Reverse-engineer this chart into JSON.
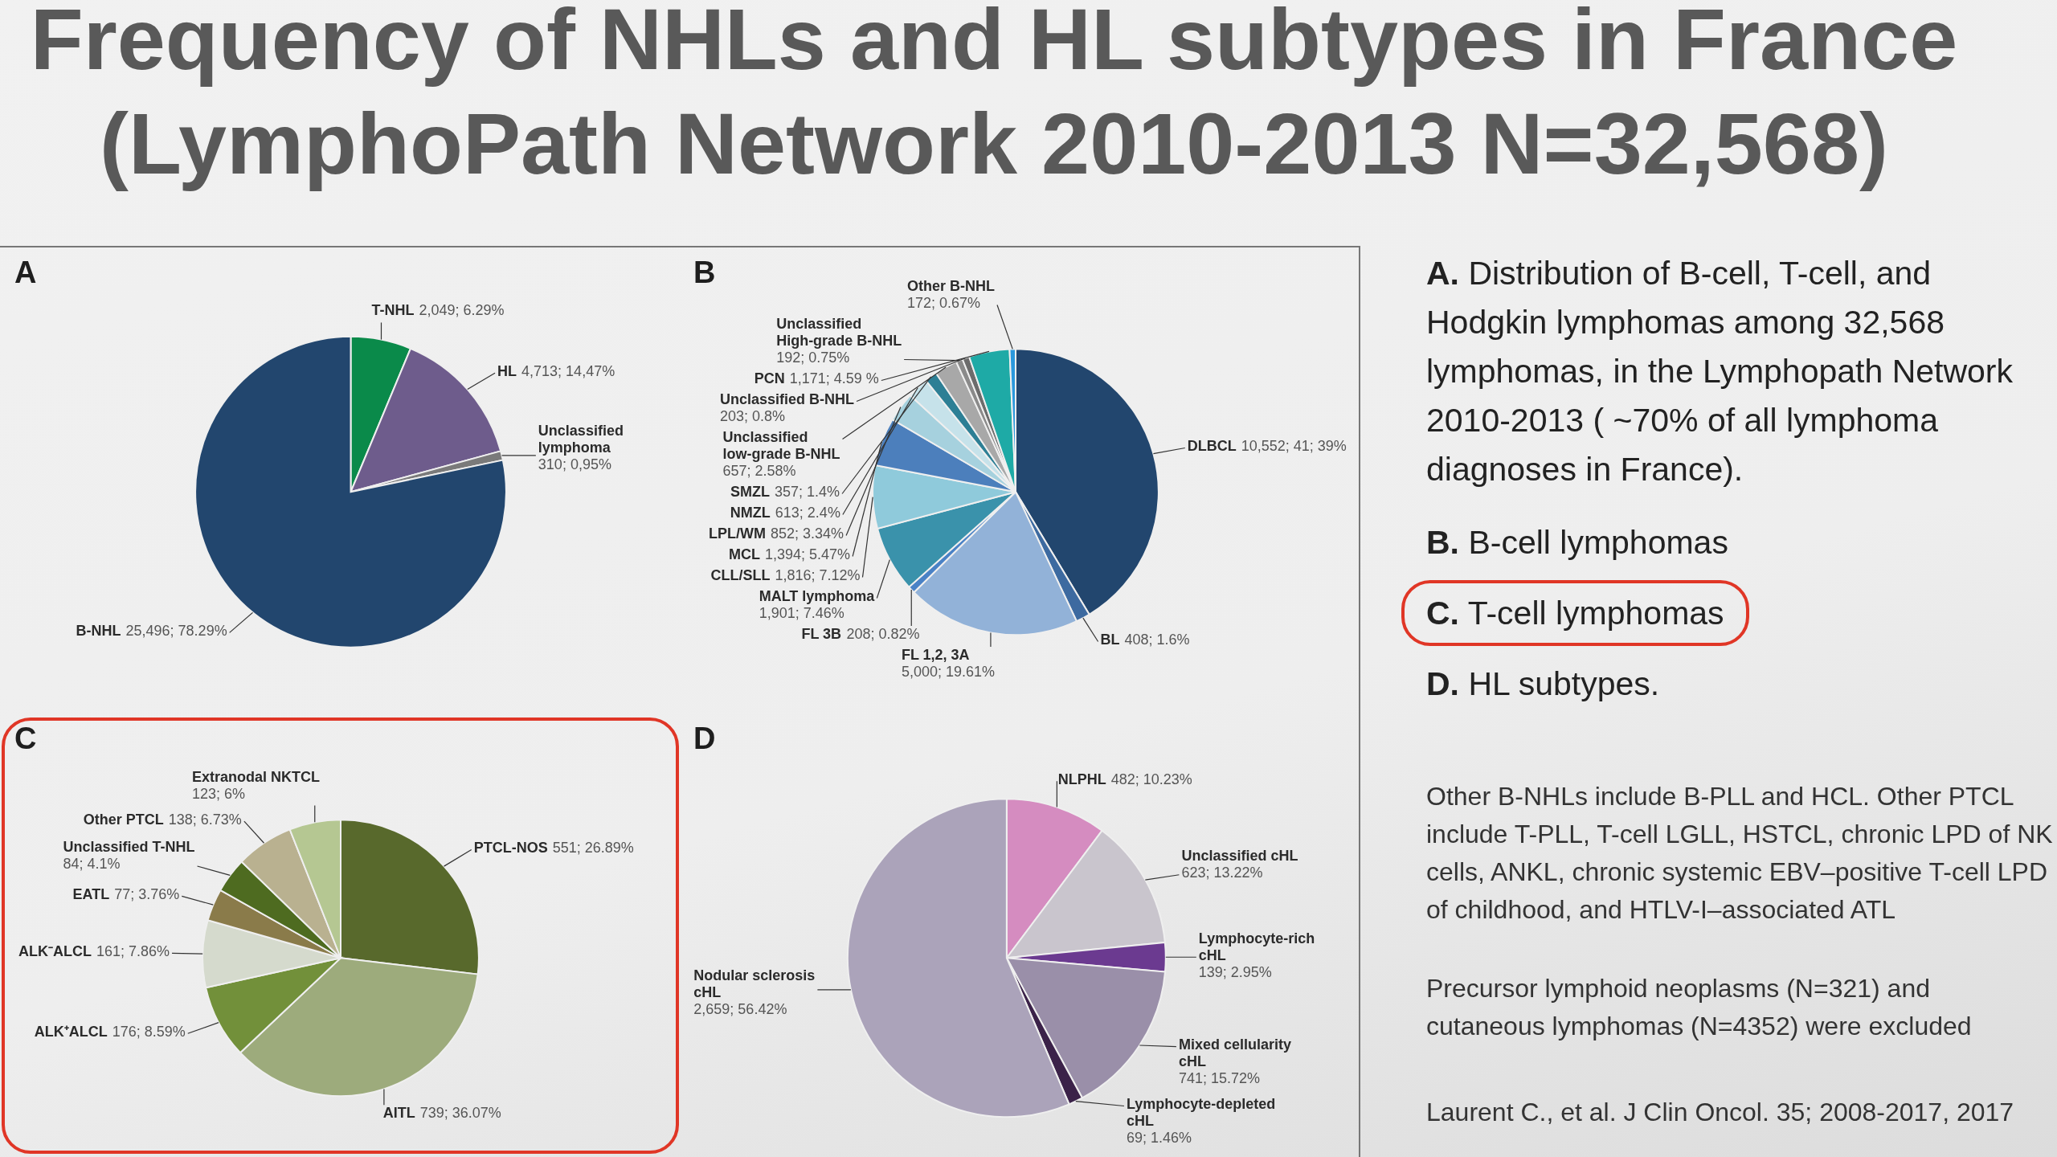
{
  "chart_data": [
    {
      "type": "other",
      "title": "Frequency of NHLs and HL subtypes in France",
      "subtitle": "(LymphoPath Network 2010-2013 N=32,568)"
    },
    {
      "type": "pie",
      "title": "A",
      "categories": [
        "T-NHL",
        "HL",
        "Unclassified lymphoma",
        "B-NHL"
      ],
      "values": [
        2049,
        4713,
        310,
        25496
      ],
      "value_labels": [
        "2,049; 6.29%",
        "4,713; 14,47%",
        "310; 0,95%",
        "25,496; 78.29%"
      ],
      "colors": [
        "#0a8a4a",
        "#6e5c8c",
        "#7a7a7a",
        "#22466e"
      ]
    },
    {
      "type": "pie",
      "title": "B",
      "categories": [
        "DLBCL",
        "BL",
        "FL 1,2, 3A",
        "FL 3B",
        "MALT lymphoma",
        "CLL/SLL",
        "MCL",
        "LPL/WM",
        "NMZL",
        "SMZL",
        "Unclassified low-grade B-NHL",
        "Unclassified High-grade B-NHL",
        "Unclassified B-NHL",
        "PCN",
        "Other B-NHL"
      ],
      "values": [
        10552,
        408,
        5000,
        208,
        1901,
        1816,
        1394,
        852,
        613,
        357,
        657,
        192,
        203,
        1171,
        172
      ],
      "value_labels": [
        "10,552; 41; 39%",
        "408; 1.6%",
        "5,000; 19.61%",
        "208; 0.82%",
        "1,901; 7.46%",
        "1,816; 7.12%",
        "1,394; 5.47%",
        "852; 3.34%",
        "613; 2.4%",
        "357; 1.4%",
        "657; 2.58%",
        "192; 0.75%",
        "203; 0.8%",
        "1,171; 4.59 %",
        "172; 0.67%"
      ],
      "colors": [
        "#22466e",
        "#3d6aa0",
        "#92b2d8",
        "#4a82c6",
        "#3a92ab",
        "#8fcadb",
        "#4c7fbc",
        "#a6d1de",
        "#c6e2ea",
        "#2d7f95",
        "#a8a8a8",
        "#8a8a8a",
        "#6c6c6c",
        "#1eaaa6",
        "#2a98dc"
      ]
    },
    {
      "type": "pie",
      "title": "C",
      "categories": [
        "PTCL-NOS",
        "AITL",
        "ALK⁺ALCL",
        "ALK⁻ALCL",
        "EATL",
        "Unclassified T-NHL",
        "Other PTCL",
        "Extranodal NKTCL"
      ],
      "values": [
        551,
        739,
        176,
        161,
        77,
        84,
        138,
        123
      ],
      "value_labels": [
        "551; 26.89%",
        "739; 36.07%",
        "176; 8.59%",
        "161; 7.86%",
        "77; 3.76%",
        "84; 4.1%",
        "138; 6.73%",
        "123; 6%"
      ],
      "colors": [
        "#58692c",
        "#9dab7c",
        "#72903a",
        "#d5dacd",
        "#8a7b4a",
        "#4e6b20",
        "#b9b190",
        "#b5c792"
      ]
    },
    {
      "type": "pie",
      "title": "D",
      "categories": [
        "NLPHL",
        "Unclassified cHL",
        "Lymphocyte-rich cHL",
        "Mixed cellularity cHL",
        "Lymphocyte-depleted cHL",
        "Nodular sclerosis cHL"
      ],
      "values": [
        482,
        623,
        139,
        741,
        69,
        2659
      ],
      "value_labels": [
        "482; 10.23%",
        "623; 13.22%",
        "139; 2.95%",
        "741; 15.72%",
        "69; 1.46%",
        "2,659; 56.42%"
      ],
      "colors": [
        "#d58cc0",
        "#c9c5cd",
        "#6b3a90",
        "#9a8fa9",
        "#3b2249",
        "#aba3ba"
      ]
    },
    {
      "type": "other",
      "annotations": [
        "A. Distribution of B-cell, T-cell, and Hodgkin lymphomas among 32,568 lymphomas, in the Lymphopath Network 2010-2013 ( ~70% of all lymphoma diagnoses in France).",
        "B. B-cell lymphomas",
        "C. T-cell lymphomas",
        "D. HL subtypes.",
        "Other B-NHLs include B-PLL and HCL. Other PTCL include T-PLL, T-cell LGLL, HSTCL, chronic LPD of NK cells, ANKL, chronic systemic EBV–positive T-cell LPD of childhood, and HTLV-I–associated ATL",
        "Precursor lymphoid neoplasms (N=321) and cutaneous lymphomas (N=4352) were excluded",
        "Laurent C., et al. J Clin Oncol. 35; 2008-2017, 2017"
      ]
    }
  ]
}
